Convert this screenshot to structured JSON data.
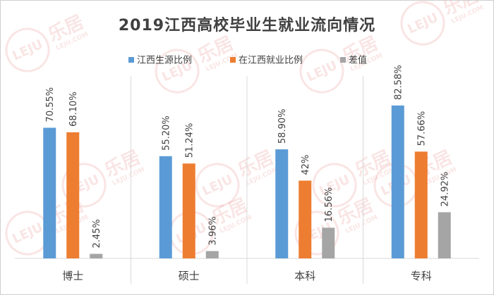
{
  "chart_data": {
    "type": "bar",
    "title": "2019江西高校毕业生就业流向情况",
    "categories": [
      "博士",
      "硕士",
      "本科",
      "专科"
    ],
    "series": [
      {
        "name": "江西生源比例",
        "values": [
          70.55,
          55.2,
          58.9,
          82.58
        ],
        "labels": [
          "70.55%",
          "55.20%",
          "58.90%",
          "82.58%"
        ],
        "color": "#5b9bd5"
      },
      {
        "name": "在江西就业比例",
        "values": [
          68.1,
          51.24,
          42.0,
          57.66
        ],
        "labels": [
          "68.10%",
          "51.24%",
          "42%",
          "57.66%"
        ],
        "color": "#ed7d31"
      },
      {
        "name": "差值",
        "values": [
          2.45,
          3.96,
          16.56,
          24.92
        ],
        "labels": [
          "2.45%",
          "3.96%",
          "16.56%",
          "24.92%"
        ],
        "color": "#a5a5a5"
      }
    ],
    "ylim": [
      0,
      100
    ],
    "grid": false,
    "legend_position": "top",
    "xlabel": "",
    "ylabel": ""
  },
  "watermark": {
    "brand_cn": "乐居",
    "brand_en": "LEJU",
    "url": "LEJU.COM",
    "color": "#d9403a"
  }
}
